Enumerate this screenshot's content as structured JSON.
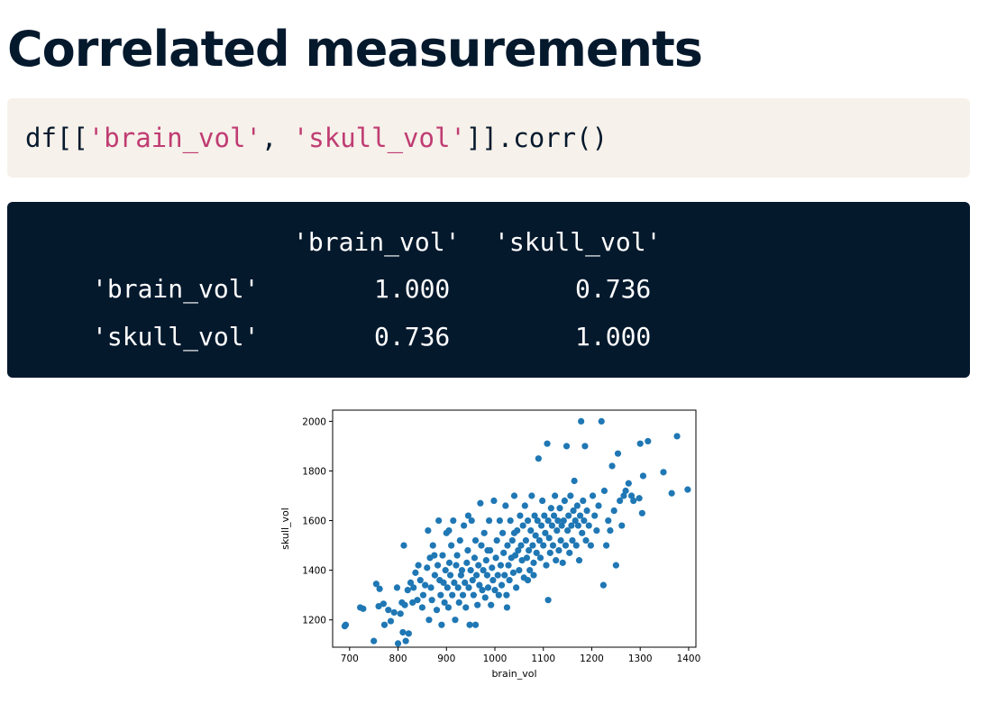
{
  "page": {
    "title": "Correlated measurements"
  },
  "code": {
    "prefix": "df[[",
    "arg1": "'brain_vol'",
    "sep": ", ",
    "arg2": "'skull_vol'",
    "suffix": "]].corr()"
  },
  "output": {
    "col_headers": [
      "'brain_vol'",
      "'skull_vol'"
    ],
    "rows": [
      {
        "label": "'brain_vol'",
        "values": [
          "1.000",
          "0.736"
        ]
      },
      {
        "label": "'skull_vol'",
        "values": [
          "0.736",
          "1.000"
        ]
      }
    ]
  },
  "colors": {
    "dark_navy": "#05192d",
    "code_bg": "#f6f1ea",
    "string_pink": "#c03c73",
    "point_blue": "#1f77b4"
  },
  "chart_data": {
    "type": "scatter",
    "title": "",
    "xlabel": "brain_vol",
    "ylabel": "skull_vol",
    "xlim": [
      665,
      1415
    ],
    "ylim": [
      1090,
      2045
    ],
    "xticks": [
      700,
      800,
      900,
      1000,
      1100,
      1200,
      1300,
      1400
    ],
    "yticks": [
      1200,
      1400,
      1600,
      1800,
      2000
    ],
    "grid": false,
    "color": "#1f77b4",
    "points": [
      [
        690,
        1175
      ],
      [
        692,
        1180
      ],
      [
        722,
        1250
      ],
      [
        728,
        1245
      ],
      [
        750,
        1115
      ],
      [
        755,
        1345
      ],
      [
        760,
        1255
      ],
      [
        762,
        1325
      ],
      [
        770,
        1265
      ],
      [
        772,
        1180
      ],
      [
        780,
        1240
      ],
      [
        785,
        1195
      ],
      [
        792,
        1230
      ],
      [
        798,
        1330
      ],
      [
        800,
        1105
      ],
      [
        805,
        1225
      ],
      [
        808,
        1270
      ],
      [
        810,
        1150
      ],
      [
        812,
        1500
      ],
      [
        814,
        1260
      ],
      [
        816,
        1115
      ],
      [
        820,
        1320
      ],
      [
        822,
        1145
      ],
      [
        826,
        1350
      ],
      [
        830,
        1270
      ],
      [
        832,
        1330
      ],
      [
        836,
        1390
      ],
      [
        840,
        1280
      ],
      [
        842,
        1420
      ],
      [
        846,
        1360
      ],
      [
        850,
        1250
      ],
      [
        852,
        1300
      ],
      [
        856,
        1340
      ],
      [
        860,
        1410
      ],
      [
        862,
        1560
      ],
      [
        864,
        1200
      ],
      [
        866,
        1450
      ],
      [
        868,
        1330
      ],
      [
        870,
        1280
      ],
      [
        872,
        1500
      ],
      [
        876,
        1380
      ],
      [
        880,
        1240
      ],
      [
        882,
        1420
      ],
      [
        884,
        1600
      ],
      [
        886,
        1360
      ],
      [
        888,
        1300
      ],
      [
        890,
        1180
      ],
      [
        892,
        1460
      ],
      [
        894,
        1350
      ],
      [
        896,
        1270
      ],
      [
        898,
        1400
      ],
      [
        900,
        1550
      ],
      [
        902,
        1330
      ],
      [
        904,
        1250
      ],
      [
        906,
        1430
      ],
      [
        908,
        1380
      ],
      [
        910,
        1500
      ],
      [
        912,
        1300
      ],
      [
        914,
        1600
      ],
      [
        916,
        1350
      ],
      [
        918,
        1200
      ],
      [
        920,
        1420
      ],
      [
        922,
        1460
      ],
      [
        924,
        1330
      ],
      [
        926,
        1270
      ],
      [
        928,
        1520
      ],
      [
        930,
        1380
      ],
      [
        932,
        1400
      ],
      [
        934,
        1300
      ],
      [
        936,
        1580
      ],
      [
        938,
        1350
      ],
      [
        940,
        1250
      ],
      [
        942,
        1430
      ],
      [
        944,
        1480
      ],
      [
        946,
        1330
      ],
      [
        948,
        1180
      ],
      [
        950,
        1400
      ],
      [
        952,
        1600
      ],
      [
        954,
        1360
      ],
      [
        956,
        1300
      ],
      [
        958,
        1450
      ],
      [
        960,
        1520
      ],
      [
        962,
        1380
      ],
      [
        964,
        1260
      ],
      [
        966,
        1420
      ],
      [
        968,
        1340
      ],
      [
        970,
        1670
      ],
      [
        972,
        1500
      ],
      [
        974,
        1320
      ],
      [
        976,
        1400
      ],
      [
        978,
        1550
      ],
      [
        980,
        1290
      ],
      [
        982,
        1440
      ],
      [
        984,
        1380
      ],
      [
        986,
        1330
      ],
      [
        988,
        1600
      ],
      [
        990,
        1480
      ],
      [
        992,
        1260
      ],
      [
        994,
        1410
      ],
      [
        996,
        1360
      ],
      [
        998,
        1680
      ],
      [
        1000,
        1320
      ],
      [
        1002,
        1450
      ],
      [
        1004,
        1520
      ],
      [
        1006,
        1380
      ],
      [
        1008,
        1300
      ],
      [
        1010,
        1600
      ],
      [
        1012,
        1420
      ],
      [
        1014,
        1340
      ],
      [
        1016,
        1550
      ],
      [
        1018,
        1470
      ],
      [
        1020,
        1380
      ],
      [
        1022,
        1660
      ],
      [
        1024,
        1300
      ],
      [
        1026,
        1500
      ],
      [
        1028,
        1420
      ],
      [
        1030,
        1360
      ],
      [
        1032,
        1600
      ],
      [
        1034,
        1450
      ],
      [
        1036,
        1520
      ],
      [
        1038,
        1390
      ],
      [
        1040,
        1700
      ],
      [
        1042,
        1460
      ],
      [
        1044,
        1330
      ],
      [
        1046,
        1560
      ],
      [
        1048,
        1480
      ],
      [
        1050,
        1400
      ],
      [
        1052,
        1620
      ],
      [
        1054,
        1500
      ],
      [
        1056,
        1440
      ],
      [
        1058,
        1580
      ],
      [
        1060,
        1370
      ],
      [
        1062,
        1660
      ],
      [
        1064,
        1520
      ],
      [
        1066,
        1450
      ],
      [
        1068,
        1600
      ],
      [
        1070,
        1480
      ],
      [
        1072,
        1400
      ],
      [
        1074,
        1560
      ],
      [
        1076,
        1700
      ],
      [
        1078,
        1500
      ],
      [
        1080,
        1430
      ],
      [
        1082,
        1620
      ],
      [
        1084,
        1540
      ],
      [
        1086,
        1470
      ],
      [
        1088,
        1600
      ],
      [
        1090,
        1850
      ],
      [
        1092,
        1520
      ],
      [
        1094,
        1450
      ],
      [
        1096,
        1580
      ],
      [
        1098,
        1680
      ],
      [
        1100,
        1500
      ],
      [
        1102,
        1620
      ],
      [
        1104,
        1550
      ],
      [
        1106,
        1420
      ],
      [
        1108,
        1910
      ],
      [
        1110,
        1600
      ],
      [
        1112,
        1530
      ],
      [
        1114,
        1470
      ],
      [
        1116,
        1650
      ],
      [
        1118,
        1580
      ],
      [
        1120,
        1500
      ],
      [
        1122,
        1620
      ],
      [
        1124,
        1700
      ],
      [
        1126,
        1440
      ],
      [
        1128,
        1560
      ],
      [
        1130,
        1600
      ],
      [
        1132,
        1480
      ],
      [
        1134,
        1650
      ],
      [
        1136,
        1520
      ],
      [
        1138,
        1580
      ],
      [
        1140,
        1430
      ],
      [
        1142,
        1600
      ],
      [
        1144,
        1680
      ],
      [
        1146,
        1500
      ],
      [
        1148,
        1900
      ],
      [
        1150,
        1560
      ],
      [
        1152,
        1620
      ],
      [
        1154,
        1470
      ],
      [
        1156,
        1700
      ],
      [
        1158,
        1580
      ],
      [
        1160,
        1520
      ],
      [
        1162,
        1640
      ],
      [
        1164,
        1760
      ],
      [
        1166,
        1600
      ],
      [
        1168,
        1500
      ],
      [
        1170,
        1660
      ],
      [
        1172,
        1580
      ],
      [
        1174,
        1440
      ],
      [
        1176,
        1620
      ],
      [
        1178,
        2000
      ],
      [
        1180,
        1550
      ],
      [
        1182,
        1680
      ],
      [
        1184,
        1600
      ],
      [
        1186,
        1900
      ],
      [
        1188,
        1520
      ],
      [
        1190,
        1640
      ],
      [
        1194,
        1580
      ],
      [
        1198,
        1500
      ],
      [
        1202,
        1700
      ],
      [
        1206,
        1620
      ],
      [
        1210,
        1560
      ],
      [
        1214,
        1660
      ],
      [
        1220,
        2000
      ],
      [
        1224,
        1340
      ],
      [
        1226,
        1720
      ],
      [
        1230,
        1500
      ],
      [
        1234,
        1600
      ],
      [
        1238,
        1560
      ],
      [
        1242,
        1820
      ],
      [
        1246,
        1640
      ],
      [
        1250,
        1420
      ],
      [
        1254,
        1870
      ],
      [
        1258,
        1680
      ],
      [
        1262,
        1580
      ],
      [
        1266,
        1700
      ],
      [
        1270,
        1720
      ],
      [
        1276,
        1750
      ],
      [
        1282,
        1700
      ],
      [
        1286,
        1680
      ],
      [
        1298,
        1690
      ],
      [
        1300,
        1910
      ],
      [
        1304,
        1630
      ],
      [
        1306,
        1780
      ],
      [
        1316,
        1920
      ],
      [
        1348,
        1795
      ],
      [
        1365,
        1710
      ],
      [
        1376,
        1940
      ],
      [
        1398,
        1725
      ],
      [
        1068,
        1360
      ],
      [
        985,
        1480
      ],
      [
        945,
        1620
      ],
      [
        905,
        1560
      ],
      [
        875,
        1460
      ],
      [
        1025,
        1250
      ],
      [
        960,
        1180
      ],
      [
        1110,
        1280
      ],
      [
        1040,
        1550
      ],
      [
        1080,
        1380
      ]
    ]
  }
}
